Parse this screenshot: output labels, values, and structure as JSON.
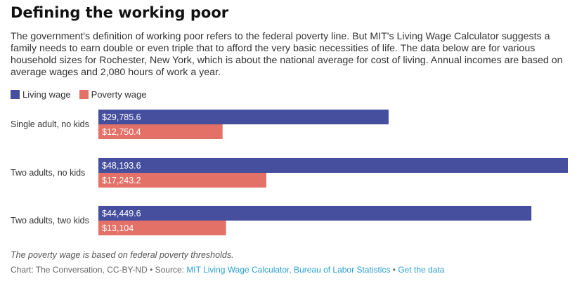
{
  "header": {
    "title": "Defining the working poor",
    "subtitle": "The government's definition of working poor refers to the federal poverty line. But MIT's Living Wage Calculator suggests a family needs to earn double or even triple that to afford the very basic necessities of life. The data below are for various household sizes for Rochester, New York, which is about the national average for cost of living. Annual incomes are based on average wages and 2,080 hours of work a year."
  },
  "chart_data": {
    "type": "bar",
    "orientation": "horizontal",
    "categories": [
      "Single adult, no kids",
      "Two adults, no kids",
      "Two adults, two kids"
    ],
    "series": [
      {
        "name": "Living wage",
        "color": "#454f9e",
        "values": [
          29785.6,
          48193.6,
          44449.6
        ],
        "labels": [
          "$29,785.6",
          "$48,193.6",
          "$44,449.6"
        ]
      },
      {
        "name": "Poverty wage",
        "color": "#e37167",
        "values": [
          12750.4,
          17243.2,
          13104
        ],
        "labels": [
          "$12,750.4",
          "$17,243.2",
          "$13,104"
        ]
      }
    ],
    "xlim": [
      0,
      48193.6
    ],
    "grid": false,
    "legend_position": "top-left"
  },
  "notes": "The poverty wage is based on federal poverty thresholds.",
  "footer": {
    "prefix": "Chart: The Conversation, CC-BY-ND • Source: ",
    "source_link": "MIT Living Wage Calculator, Bureau of Labor Statistics",
    "separator": " • ",
    "data_link": "Get the data"
  }
}
